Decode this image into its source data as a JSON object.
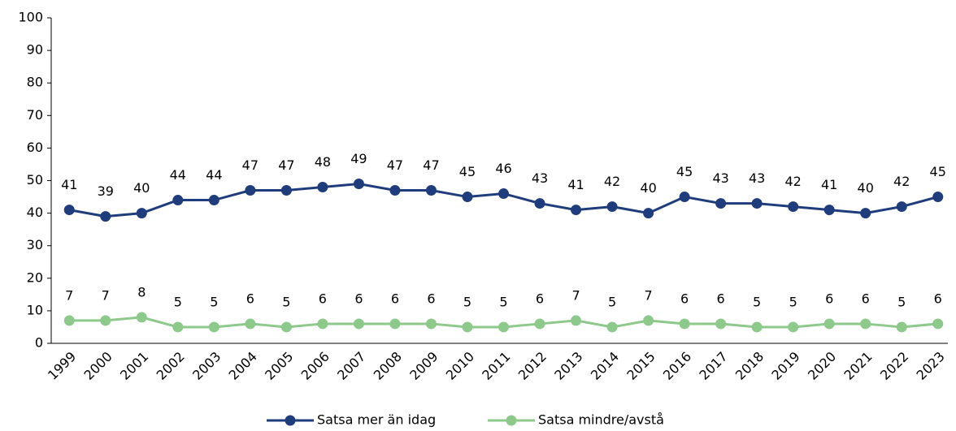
{
  "chart_data": {
    "type": "line",
    "categories": [
      "1999",
      "2000",
      "2001",
      "2002",
      "2003",
      "2004",
      "2005",
      "2006",
      "2007",
      "2008",
      "2009",
      "2010",
      "2011",
      "2012",
      "2013",
      "2014",
      "2015",
      "2016",
      "2017",
      "2018",
      "2019",
      "2020",
      "2021",
      "2022",
      "2023"
    ],
    "series": [
      {
        "name": "Satsa mer än idag",
        "color": "#1f3d7c",
        "values": [
          41,
          39,
          40,
          44,
          44,
          47,
          47,
          48,
          49,
          47,
          47,
          45,
          46,
          43,
          41,
          42,
          40,
          45,
          43,
          43,
          42,
          41,
          40,
          42,
          45
        ]
      },
      {
        "name": "Satsa mindre/avstå",
        "color": "#8dc98b",
        "values": [
          7,
          7,
          8,
          5,
          5,
          6,
          5,
          6,
          6,
          6,
          6,
          5,
          5,
          6,
          7,
          5,
          7,
          6,
          6,
          5,
          5,
          6,
          6,
          5,
          6
        ]
      }
    ],
    "ylim": [
      0,
      100
    ],
    "yticks": [
      0,
      10,
      20,
      30,
      40,
      50,
      60,
      70,
      80,
      90,
      100
    ],
    "grid": false,
    "legend": "bottom"
  }
}
